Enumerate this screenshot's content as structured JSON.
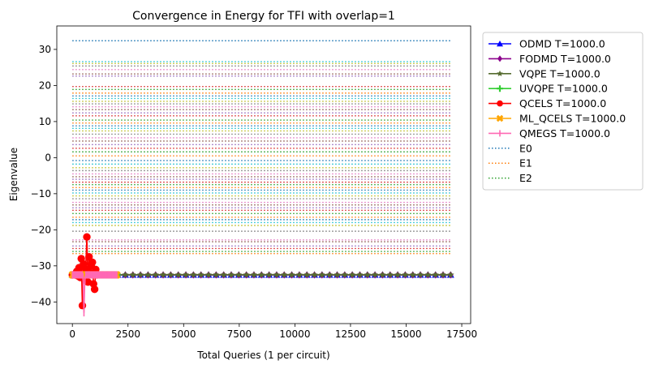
{
  "chart_data": {
    "type": "line",
    "title": "Convergence in Energy for TFI with overlap=1",
    "xlabel": "Total Queries (1 per circuit)",
    "ylabel": "Eigenvalue",
    "xlim": [
      -700,
      17900
    ],
    "ylim": [
      -46,
      36.5
    ],
    "xticks": [
      0,
      2500,
      5000,
      7500,
      10000,
      12500,
      15000,
      17500
    ],
    "yticks": [
      -40,
      -30,
      -20,
      -10,
      0,
      10,
      20,
      30
    ],
    "grid": false,
    "legend_position": "outside-right-top",
    "legend": [
      {
        "label": "ODMD T=1000.0",
        "color": "#0000ff",
        "marker": "triangle"
      },
      {
        "label": "FODMD T=1000.0",
        "color": "#8b008b",
        "marker": "diamond"
      },
      {
        "label": "VQPE T=1000.0",
        "color": "#556b2f",
        "marker": "star"
      },
      {
        "label": "UVQPE T=1000.0",
        "color": "#32cd32",
        "marker": "plus"
      },
      {
        "label": "QCELS T=1000.0",
        "color": "#ff0000",
        "marker": "circle"
      },
      {
        "label": "ML_QCELS T=1000.0",
        "color": "#ffa500",
        "marker": "x"
      },
      {
        "label": "QMEGS T=1000.0",
        "color": "#ff69b4",
        "marker": "vline"
      },
      {
        "label": "E0",
        "color": "#1f77b4",
        "marker": "dotted"
      },
      {
        "label": "E1",
        "color": "#ff7f0e",
        "marker": "dotted"
      },
      {
        "label": "E2",
        "color": "#2ca02c",
        "marker": "dotted"
      }
    ],
    "eigen_lines": {
      "x_range": [
        0,
        17000
      ],
      "colors": [
        "#1f77b4",
        "#ff7f0e",
        "#2ca02c",
        "#d62728",
        "#9467bd",
        "#8c564b",
        "#e377c2",
        "#7f7f7f",
        "#bcbd22",
        "#17becf"
      ],
      "values": [
        -32.5,
        -26.6,
        -26.0,
        -25.2,
        -24.5,
        -23.3,
        -22.8,
        -20.4,
        -18.8,
        -18.0,
        -17.2,
        -16.5,
        -15.5,
        -14.6,
        -13.9,
        -13.1,
        -12.4,
        -11.4,
        -10.6,
        -9.8,
        -9.0,
        -8.3,
        -7.5,
        -6.8,
        -6.0,
        -5.3,
        -4.5,
        -3.6,
        -2.8,
        -1.8,
        -0.8,
        0.5,
        1.6,
        2.6,
        3.6,
        4.6,
        5.5,
        6.5,
        7.4,
        8.1,
        8.8,
        9.6,
        10.4,
        11.6,
        12.4,
        13.3,
        14.1,
        14.9,
        15.6,
        16.4,
        17.1,
        17.9,
        18.9,
        19.7,
        22.6,
        23.2,
        24.4,
        25.4,
        26.1,
        26.6,
        32.4
      ]
    },
    "series": [
      {
        "name": "ODMD T=1000.0",
        "color": "#0000ff",
        "marker": "triangle",
        "x": [
          0,
          340,
          680,
          1020,
          1360,
          1700,
          2040,
          2380,
          2720,
          3060,
          3400,
          3740,
          4080,
          4420,
          4760,
          5100,
          5440,
          5780,
          6120,
          6460,
          6800,
          7140,
          7480,
          7820,
          8160,
          8500,
          8840,
          9180,
          9520,
          9860,
          10200,
          10540,
          10880,
          11220,
          11560,
          11900,
          12240,
          12580,
          12920,
          13260,
          13600,
          13940,
          14280,
          14620,
          14960,
          15300,
          15640,
          15980,
          16320,
          16660,
          17000
        ],
        "y": [
          -32.5,
          -32.5,
          -32.5,
          -32.5,
          -32.5,
          -32.5,
          -32.5,
          -32.5,
          -32.5,
          -32.5,
          -32.5,
          -32.5,
          -32.5,
          -32.5,
          -32.5,
          -32.5,
          -32.5,
          -32.5,
          -32.5,
          -32.5,
          -32.5,
          -32.5,
          -32.5,
          -32.5,
          -32.5,
          -32.5,
          -32.5,
          -32.5,
          -32.5,
          -32.5,
          -32.5,
          -32.5,
          -32.5,
          -32.5,
          -32.5,
          -32.5,
          -32.5,
          -32.5,
          -32.5,
          -32.5,
          -32.5,
          -32.5,
          -32.5,
          -32.5,
          -32.5,
          -32.5,
          -32.5,
          -32.5,
          -32.5,
          -32.5,
          -32.5
        ]
      },
      {
        "name": "FODMD T=1000.0",
        "color": "#8b008b",
        "marker": "diamond",
        "x": [
          0,
          340,
          680,
          1020,
          1360,
          1700,
          2040,
          2380,
          2720,
          3060,
          3400,
          3740,
          4080,
          4420,
          4760,
          5100,
          5440,
          5780,
          6120,
          6460,
          6800,
          7140,
          7480,
          7820,
          8160,
          8500,
          8840,
          9180,
          9520,
          9860,
          10200,
          10540,
          10880,
          11220,
          11560,
          11900,
          12240,
          12580,
          12920,
          13260,
          13600,
          13940,
          14280,
          14620,
          14960,
          15300,
          15640,
          15980,
          16320,
          16660,
          17000
        ],
        "y": [
          -32.5,
          -32.5,
          -32.5,
          -32.5,
          -32.5,
          -32.5,
          -32.5,
          -32.5,
          -32.5,
          -32.5,
          -32.5,
          -32.5,
          -32.5,
          -32.5,
          -32.5,
          -32.5,
          -32.5,
          -32.5,
          -32.5,
          -32.5,
          -32.5,
          -32.5,
          -32.5,
          -32.5,
          -32.5,
          -32.5,
          -32.5,
          -32.5,
          -32.5,
          -32.5,
          -32.5,
          -32.5,
          -32.5,
          -32.5,
          -32.5,
          -32.5,
          -32.5,
          -32.5,
          -32.5,
          -32.5,
          -32.5,
          -32.5,
          -32.5,
          -32.5,
          -32.5,
          -32.5,
          -32.5,
          -32.5,
          -32.5,
          -32.5,
          -32.5
        ]
      },
      {
        "name": "VQPE T=1000.0",
        "color": "#556b2f",
        "marker": "star",
        "x": [
          0,
          340,
          680,
          1020,
          1360,
          1700,
          2040,
          2380,
          2720,
          3060,
          3400,
          3740,
          4080,
          4420,
          4760,
          5100,
          5440,
          5780,
          6120,
          6460,
          6800,
          7140,
          7480,
          7820,
          8160,
          8500,
          8840,
          9180,
          9520,
          9860,
          10200,
          10540,
          10880,
          11220,
          11560,
          11900,
          12240,
          12580,
          12920,
          13260,
          13600,
          13940,
          14280,
          14620,
          14960,
          15300,
          15640,
          15980,
          16320,
          16660,
          17000
        ],
        "y": [
          -32.5,
          -32.5,
          -32.5,
          -32.5,
          -32.5,
          -32.5,
          -32.5,
          -32.5,
          -32.5,
          -32.5,
          -32.5,
          -32.5,
          -32.5,
          -32.5,
          -32.5,
          -32.5,
          -32.5,
          -32.5,
          -32.5,
          -32.5,
          -32.5,
          -32.5,
          -32.5,
          -32.5,
          -32.5,
          -32.5,
          -32.5,
          -32.5,
          -32.5,
          -32.5,
          -32.5,
          -32.5,
          -32.5,
          -32.5,
          -32.5,
          -32.5,
          -32.5,
          -32.5,
          -32.5,
          -32.5,
          -32.5,
          -32.5,
          -32.5,
          -32.5,
          -32.5,
          -32.5,
          -32.5,
          -32.5,
          -32.5,
          -32.5,
          -32.5
        ]
      },
      {
        "name": "UVQPE T=1000.0",
        "color": "#32cd32",
        "marker": "plus",
        "x": [
          0,
          40,
          80,
          120,
          160,
          200,
          240,
          280,
          320,
          360,
          400,
          440,
          480,
          520,
          560,
          600,
          640,
          680,
          720,
          760,
          800,
          840,
          880,
          920,
          960,
          1000,
          1040,
          1080,
          1120,
          1160,
          1200,
          1240,
          1280,
          1320,
          1360,
          1400,
          1440,
          1480,
          1520,
          1560,
          1600,
          1640,
          1680,
          1720,
          1760,
          1800,
          1840,
          1880,
          1920,
          1960,
          2000
        ],
        "y": [
          -32.5,
          -32.5,
          -32.5,
          -32.5,
          -32.5,
          -32.5,
          -32.5,
          -32.5,
          -32.5,
          -32.5,
          -32.5,
          -32.5,
          -32.5,
          -32.5,
          -32.5,
          -32.5,
          -32.5,
          -32.5,
          -32.5,
          -32.5,
          -32.5,
          -32.5,
          -32.5,
          -32.5,
          -32.5,
          -32.5,
          -32.5,
          -32.5,
          -32.5,
          -32.5,
          -32.5,
          -32.5,
          -32.5,
          -32.5,
          -32.5,
          -32.5,
          -32.5,
          -32.5,
          -32.5,
          -32.5,
          -32.5,
          -32.5,
          -32.5,
          -32.5,
          -32.5,
          -32.5,
          -32.5,
          -32.5,
          -32.5,
          -32.5,
          -32.5
        ]
      },
      {
        "name": "QCELS T=1000.0",
        "color": "#ff0000",
        "marker": "circle",
        "x": [
          0,
          100,
          200,
          250,
          300,
          350,
          400,
          450,
          500,
          550,
          600,
          650,
          700,
          750,
          800,
          850,
          900,
          950,
          1000,
          1050,
          1100
        ],
        "y": [
          -32.5,
          -32.5,
          -31.5,
          -32.8,
          -30.5,
          -33.2,
          -28.0,
          -41.0,
          -29.5,
          -34.0,
          -31.0,
          -22.0,
          -34.5,
          -27.5,
          -32.0,
          -30.0,
          -29.0,
          -35.0,
          -36.5,
          -31.0,
          -32.5
        ]
      },
      {
        "name": "ML_QCELS T=1000.0",
        "color": "#ffa500",
        "marker": "x",
        "x": [
          0,
          40,
          80,
          120,
          160,
          200,
          240,
          280,
          320,
          360,
          400,
          440,
          480,
          520,
          560,
          600,
          640,
          680,
          720,
          760,
          800,
          840,
          880,
          920,
          960,
          1000,
          1040,
          1080,
          1120,
          1160,
          1200,
          1240,
          1280,
          1320,
          1360,
          1400,
          1440,
          1480,
          1520,
          1560,
          1600,
          1640,
          1680,
          1720,
          1760,
          1800,
          1840,
          1880,
          1920,
          1960,
          2000
        ],
        "y": [
          -32.5,
          -32.5,
          -32.5,
          -32.5,
          -32.5,
          -32.5,
          -32.5,
          -32.5,
          -32.5,
          -32.5,
          -32.5,
          -32.5,
          -32.5,
          -32.5,
          -32.5,
          -32.5,
          -32.5,
          -32.5,
          -32.5,
          -32.5,
          -32.5,
          -32.5,
          -32.5,
          -32.5,
          -32.5,
          -32.5,
          -32.5,
          -32.5,
          -32.5,
          -32.5,
          -32.5,
          -32.5,
          -32.5,
          -32.5,
          -32.5,
          -32.5,
          -32.5,
          -32.5,
          -32.5,
          -32.5,
          -32.5,
          -32.5,
          -32.5,
          -32.5,
          -32.5,
          -32.5,
          -32.5,
          -32.5,
          -32.5,
          -32.5,
          -32.5
        ]
      },
      {
        "name": "QMEGS T=1000.0",
        "color": "#ff69b4",
        "marker": "vline",
        "x": [
          0,
          40,
          80,
          120,
          160,
          200,
          240,
          280,
          320,
          360,
          400,
          440,
          480,
          520,
          560,
          600,
          640,
          680,
          720,
          760,
          800,
          840,
          880,
          920,
          960,
          1000,
          1040,
          1080,
          1120,
          1160,
          1200,
          1240,
          1280,
          1320,
          1360,
          1400,
          1440,
          1480,
          1520,
          1560,
          1600,
          1640,
          1680,
          1720,
          1760,
          1800,
          1840,
          1880,
          1920,
          1960,
          2000
        ],
        "y": [
          -32.5,
          -32.5,
          -32.5,
          -32.5,
          -32.5,
          -32.5,
          -32.5,
          -32.5,
          -32.5,
          -32.5,
          -32.5,
          -32.5,
          -33.0,
          -43.0,
          -34.0,
          -32.5,
          -32.5,
          -32.5,
          -32.5,
          -32.5,
          -32.5,
          -32.5,
          -32.5,
          -32.5,
          -32.5,
          -32.5,
          -32.5,
          -32.5,
          -32.5,
          -32.5,
          -32.5,
          -32.5,
          -32.5,
          -32.5,
          -32.5,
          -32.5,
          -32.5,
          -32.5,
          -32.5,
          -32.5,
          -32.5,
          -32.5,
          -32.5,
          -32.5,
          -32.5,
          -32.5,
          -32.5,
          -32.5,
          -32.5,
          -32.5,
          -32.5
        ]
      }
    ]
  }
}
